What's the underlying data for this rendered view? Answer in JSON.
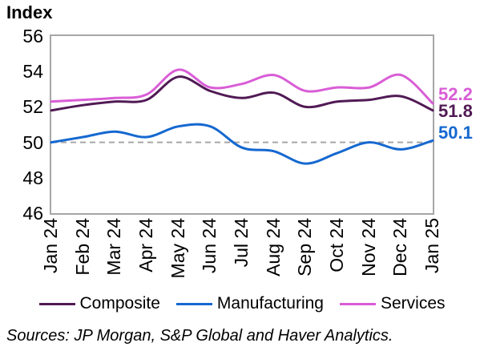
{
  "title": "Index",
  "chart_data": {
    "type": "line",
    "title": "Index",
    "x": [
      "Jan 24",
      "Feb 24",
      "Mar 24",
      "Apr 24",
      "May 24",
      "Jun 24",
      "Jul 24",
      "Aug 24",
      "Sep 24",
      "Oct 24",
      "Nov 24",
      "Dec 24",
      "Jan 25"
    ],
    "series": [
      {
        "name": "Composite",
        "color": "#511a55",
        "values": [
          51.8,
          52.1,
          52.3,
          52.4,
          53.7,
          52.9,
          52.5,
          52.8,
          52.0,
          52.3,
          52.4,
          52.6,
          51.8
        ],
        "end_label": "51.8"
      },
      {
        "name": "Manufacturing",
        "color": "#1568d0",
        "values": [
          50.0,
          50.3,
          50.6,
          50.3,
          50.9,
          50.9,
          49.7,
          49.5,
          48.8,
          49.4,
          50.0,
          49.6,
          50.1
        ],
        "end_label": "50.1"
      },
      {
        "name": "Services",
        "color": "#d95dd6",
        "values": [
          52.3,
          52.4,
          52.5,
          52.7,
          54.1,
          53.1,
          53.3,
          53.8,
          52.9,
          53.1,
          53.1,
          53.8,
          52.2
        ],
        "end_label": "52.2"
      }
    ],
    "ylim": [
      46,
      56
    ],
    "yticks": [
      56,
      54,
      52,
      50,
      48,
      46
    ],
    "reference_line": 50,
    "grid": false,
    "legend_position": "bottom",
    "curve": "smooth"
  },
  "colors": {
    "axis_border": "#a6a6a6",
    "reference_line": "#a6a6a6",
    "text": "#000000"
  },
  "source_note": "Sources: JP Morgan, S&P Global and Haver Analytics."
}
